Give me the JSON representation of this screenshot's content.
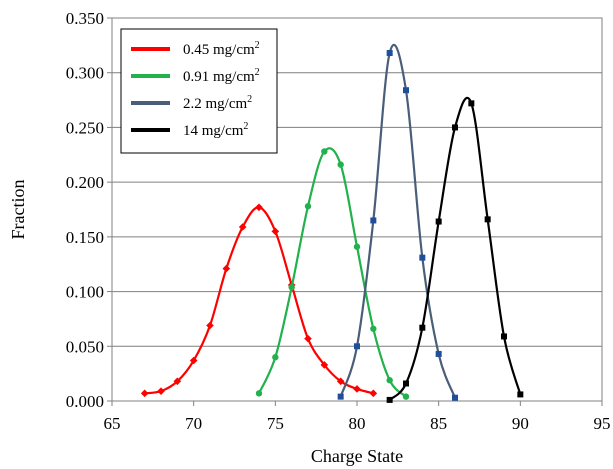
{
  "chart_data": {
    "type": "line",
    "title": "",
    "xlabel": "Charge State",
    "ylabel": "Fraction",
    "xlim": [
      65,
      95
    ],
    "ylim": [
      0,
      0.35
    ],
    "x_ticks": [
      "65",
      "70",
      "75",
      "80",
      "85",
      "90",
      "95"
    ],
    "y_ticks": [
      "0.000",
      "0.050",
      "0.100",
      "0.150",
      "0.200",
      "0.250",
      "0.300",
      "0.350"
    ],
    "grid": "horizontal",
    "legend_position": "top-left",
    "series": [
      {
        "name": "0.45 mg/cm",
        "name_sup": "2",
        "color": "#ff0000",
        "marker": "diamond",
        "points": [
          [
            67,
            0.007
          ],
          [
            68,
            0.009
          ],
          [
            69,
            0.018
          ],
          [
            70,
            0.037
          ],
          [
            71,
            0.069
          ],
          [
            72,
            0.121
          ],
          [
            73,
            0.159
          ],
          [
            74,
            0.177
          ],
          [
            75,
            0.155
          ],
          [
            76,
            0.106
          ],
          [
            77,
            0.057
          ],
          [
            78,
            0.033
          ],
          [
            79,
            0.018
          ],
          [
            80,
            0.011
          ],
          [
            81,
            0.007
          ]
        ]
      },
      {
        "name": "0.91 mg/cm",
        "name_sup": "2",
        "color": "#22b14c",
        "marker": "circle",
        "points": [
          [
            74,
            0.007
          ],
          [
            75,
            0.04
          ],
          [
            76,
            0.104
          ],
          [
            77,
            0.178
          ],
          [
            78,
            0.228
          ],
          [
            79,
            0.216
          ],
          [
            80,
            0.141
          ],
          [
            81,
            0.066
          ],
          [
            82,
            0.019
          ],
          [
            83,
            0.004
          ]
        ]
      },
      {
        "name": "2.2 mg/cm",
        "name_sup": "2",
        "color": "#4a5e7a",
        "marker": "square",
        "points": [
          [
            79,
            0.004
          ],
          [
            80,
            0.05
          ],
          [
            81,
            0.165
          ],
          [
            82,
            0.318
          ],
          [
            83,
            0.284
          ],
          [
            84,
            0.131
          ],
          [
            85,
            0.043
          ],
          [
            86,
            0.003
          ]
        ]
      },
      {
        "name": "14 mg/cm",
        "name_sup": "2",
        "color": "#000000",
        "marker": "square",
        "points": [
          [
            82,
            0.001
          ],
          [
            83,
            0.016
          ],
          [
            84,
            0.067
          ],
          [
            85,
            0.164
          ],
          [
            86,
            0.25
          ],
          [
            87,
            0.272
          ],
          [
            88,
            0.166
          ],
          [
            89,
            0.059
          ],
          [
            90,
            0.006
          ]
        ]
      }
    ]
  }
}
